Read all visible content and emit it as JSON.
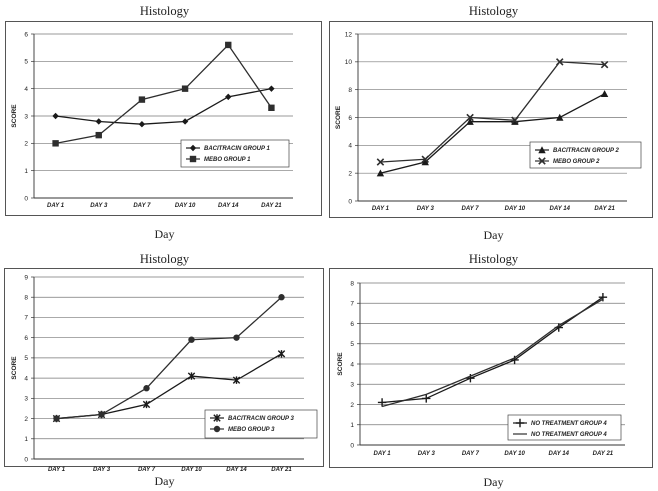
{
  "chart_data": [
    {
      "type": "line",
      "title": "Histology",
      "xlabel": "Day",
      "ylabel": "SCORE",
      "ylim": [
        0,
        6
      ],
      "yticks": [
        0,
        1,
        2,
        3,
        4,
        5,
        6
      ],
      "categories": [
        "DAY 1",
        "DAY 3",
        "DAY 7",
        "DAY 10",
        "DAY 14",
        "DAY 21"
      ],
      "grid": true,
      "legend": "bottom-right",
      "series": [
        {
          "name": "BACITRACIN GROUP 1",
          "marker": "diamond",
          "values": [
            3.0,
            2.8,
            2.7,
            2.8,
            3.7,
            4.0
          ]
        },
        {
          "name": "MEBO GROUP 1",
          "marker": "square",
          "values": [
            2.0,
            2.3,
            3.6,
            4.0,
            5.6,
            3.3
          ]
        }
      ]
    },
    {
      "type": "line",
      "title": "Histology",
      "xlabel": "Day",
      "ylabel": "SCORE",
      "ylim": [
        0,
        12
      ],
      "yticks": [
        0,
        2,
        4,
        6,
        8,
        10,
        12
      ],
      "categories": [
        "DAY 1",
        "DAY 3",
        "DAY 7",
        "DAY 10",
        "DAY 14",
        "DAY 21"
      ],
      "grid": true,
      "legend": "bottom-right",
      "series": [
        {
          "name": "BACITRACIN GROUP 2",
          "marker": "triangle",
          "values": [
            2.0,
            2.8,
            5.7,
            5.7,
            6.0,
            7.7
          ]
        },
        {
          "name": "MEBO GROUP 2",
          "marker": "x",
          "values": [
            2.8,
            3.0,
            6.0,
            5.8,
            10.0,
            9.8
          ]
        }
      ]
    },
    {
      "type": "line",
      "title": "Histology",
      "xlabel": "Day",
      "ylabel": "SCORE",
      "ylim": [
        0,
        9
      ],
      "yticks": [
        0,
        1,
        2,
        3,
        4,
        5,
        6,
        7,
        8,
        9
      ],
      "categories": [
        "DAY 1",
        "DAY 3",
        "DAY 7",
        "DAY 10",
        "DAY 14",
        "DAY 21"
      ],
      "grid": true,
      "legend": "bottom-right",
      "series": [
        {
          "name": "BACITRACIN GROUP 3",
          "marker": "asterisk",
          "values": [
            2.0,
            2.2,
            2.7,
            4.1,
            3.9,
            5.2
          ]
        },
        {
          "name": "MEBO GROUP 3",
          "marker": "circle",
          "values": [
            2.0,
            2.2,
            3.5,
            5.9,
            6.0,
            8.0
          ]
        }
      ]
    },
    {
      "type": "line",
      "title": "Histology",
      "xlabel": "Day",
      "ylabel": "SCORE",
      "ylim": [
        0,
        8
      ],
      "yticks": [
        0,
        1,
        2,
        3,
        4,
        5,
        6,
        7,
        8
      ],
      "categories": [
        "DAY 1",
        "DAY 3",
        "DAY 7",
        "DAY 10",
        "DAY 14",
        "DAY 21"
      ],
      "grid": true,
      "legend": "bottom-right",
      "series": [
        {
          "name": "NO TREATMENT GROUP 4",
          "marker": "plus",
          "values": [
            2.1,
            2.3,
            3.3,
            4.2,
            5.8,
            7.3
          ]
        },
        {
          "name": "NO TREATMENT GROUP 4",
          "marker": "none",
          "values": [
            1.9,
            2.5,
            3.4,
            4.3,
            5.9,
            7.2
          ]
        }
      ]
    }
  ]
}
